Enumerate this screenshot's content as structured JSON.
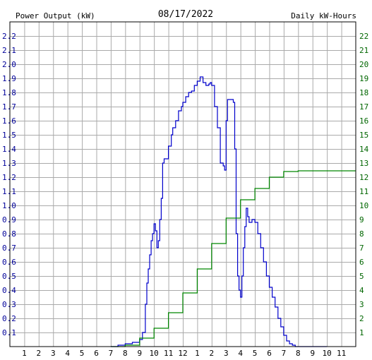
{
  "chart_data": {
    "type": "line",
    "title": "08/17/2022",
    "left_axis_label": "Power Output (kW)",
    "right_axis_label": "Daily kW-Hours",
    "colors": {
      "power": "#0000cc",
      "energy": "#008800",
      "grid": "#aaaaaa",
      "axis": "#000000",
      "left_label": "#000099",
      "right_label": "#006600"
    },
    "x_ticks": [
      "1",
      "2",
      "3",
      "4",
      "5",
      "6",
      "7",
      "8",
      "9",
      "10",
      "11",
      "12",
      "1",
      "2",
      "3",
      "4",
      "5",
      "6",
      "7",
      "8",
      "9",
      "10",
      "11"
    ],
    "left_ticks": [
      "0.1",
      "0.2",
      "0.3",
      "0.4",
      "0.5",
      "0.6",
      "0.7",
      "0.8",
      "0.9",
      "1.0",
      "1.1",
      "1.2",
      "1.3",
      "1.4",
      "1.5",
      "1.6",
      "1.7",
      "1.8",
      "1.9",
      "2.0",
      "2.1",
      "2.2"
    ],
    "right_ticks": [
      "1",
      "2",
      "3",
      "4",
      "5",
      "6",
      "7",
      "8",
      "9",
      "10",
      "11",
      "12",
      "13",
      "14",
      "15",
      "16",
      "17",
      "18",
      "19",
      "20",
      "21",
      "22"
    ],
    "xlim": [
      0,
      24
    ],
    "ylim_left": [
      0,
      2.3
    ],
    "ylim_right": [
      0,
      23
    ],
    "grid": true,
    "series": [
      {
        "name": "Power Output (kW)",
        "axis": "left",
        "x": [
          7.0,
          7.5,
          8.0,
          8.5,
          9.0,
          9.2,
          9.4,
          9.5,
          9.6,
          9.7,
          9.8,
          9.9,
          10.0,
          10.1,
          10.2,
          10.3,
          10.4,
          10.5,
          10.6,
          10.7,
          10.8,
          11.0,
          11.2,
          11.3,
          11.5,
          11.7,
          11.9,
          12.0,
          12.2,
          12.4,
          12.6,
          12.8,
          13.0,
          13.2,
          13.4,
          13.6,
          13.8,
          13.9,
          14.0,
          14.2,
          14.4,
          14.6,
          14.8,
          14.9,
          15.0,
          15.1,
          15.3,
          15.5,
          15.6,
          15.7,
          15.8,
          15.9,
          16.0,
          16.1,
          16.2,
          16.3,
          16.4,
          16.5,
          16.6,
          16.8,
          17.0,
          17.2,
          17.4,
          17.6,
          17.8,
          18.0,
          18.2,
          18.4,
          18.6,
          18.8,
          19.0,
          19.2,
          19.4,
          19.6,
          19.8,
          20.0,
          20.2,
          20.5,
          21.0,
          21.5,
          22.0
        ],
        "y": [
          0.0,
          0.01,
          0.02,
          0.03,
          0.05,
          0.1,
          0.3,
          0.45,
          0.55,
          0.65,
          0.75,
          0.8,
          0.87,
          0.82,
          0.7,
          0.75,
          0.9,
          1.05,
          1.3,
          1.33,
          1.33,
          1.42,
          1.5,
          1.55,
          1.6,
          1.67,
          1.7,
          1.73,
          1.77,
          1.8,
          1.81,
          1.85,
          1.88,
          1.91,
          1.87,
          1.85,
          1.86,
          1.87,
          1.85,
          1.7,
          1.55,
          1.3,
          1.28,
          1.25,
          1.6,
          1.75,
          1.75,
          1.73,
          1.4,
          0.8,
          0.5,
          0.4,
          0.35,
          0.5,
          0.7,
          0.85,
          0.98,
          0.92,
          0.88,
          0.9,
          0.88,
          0.8,
          0.7,
          0.6,
          0.5,
          0.42,
          0.35,
          0.28,
          0.2,
          0.14,
          0.08,
          0.04,
          0.02,
          0.01,
          0.0,
          0.0,
          0.0,
          0.0,
          0.0,
          0.0,
          0.0
        ]
      },
      {
        "name": "Daily kW-Hours",
        "axis": "right",
        "x": [
          7.0,
          8.0,
          9.0,
          10.0,
          11.0,
          12.0,
          13.0,
          14.0,
          15.0,
          16.0,
          17.0,
          18.0,
          19.0,
          20.0,
          21.0,
          22.0,
          23.0,
          24.0
        ],
        "y": [
          0.0,
          0.1,
          0.6,
          1.3,
          2.4,
          3.8,
          5.5,
          7.3,
          9.1,
          10.4,
          11.2,
          12.0,
          12.4,
          12.45,
          12.45,
          12.45,
          12.45,
          12.45
        ]
      }
    ]
  }
}
